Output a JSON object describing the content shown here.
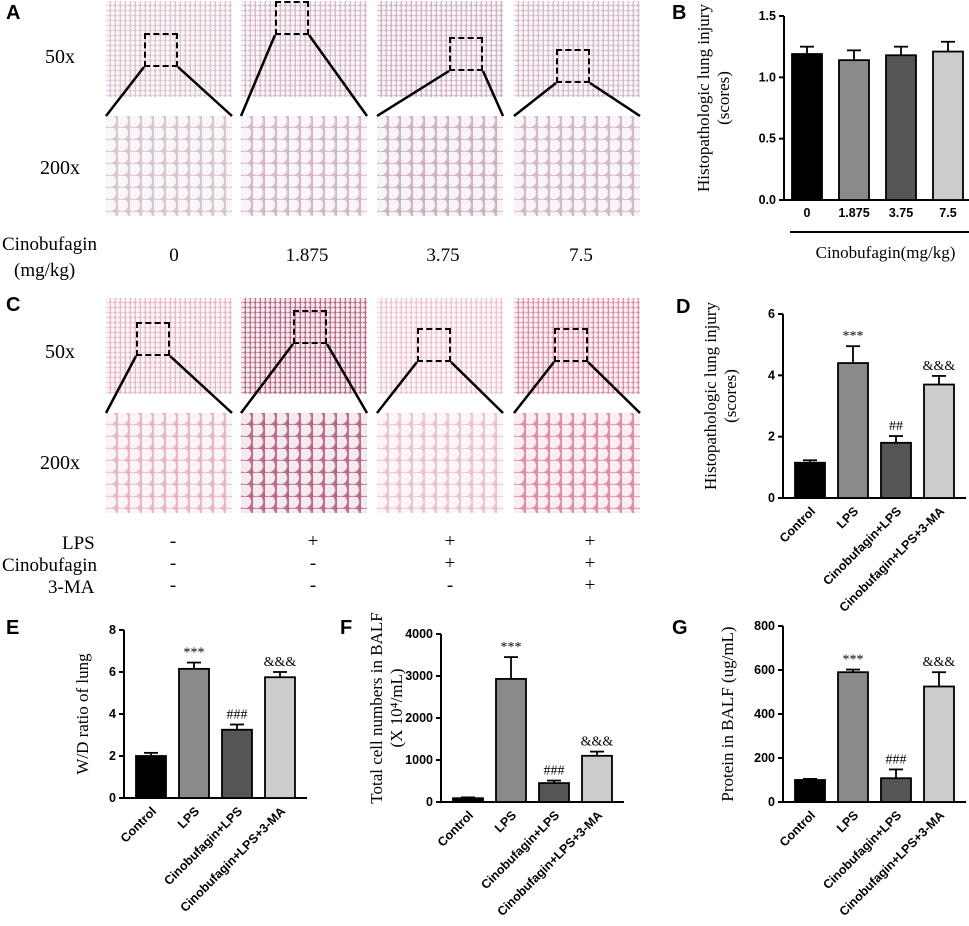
{
  "panels": {
    "a": "A",
    "b": "B",
    "c": "C",
    "d": "D",
    "e": "E",
    "f": "F",
    "g": "G"
  },
  "micro": {
    "mag_low": "50x",
    "mag_high": "200x",
    "cino_label_line1": "Cinobufagin",
    "cino_label_line2": "(mg/kg)",
    "doses": [
      "0",
      "1.875",
      "3.75",
      "7.5"
    ],
    "cond_labels": [
      "LPS",
      "Cinobufagin",
      "3-MA"
    ],
    "cond_rows": [
      [
        "-",
        "+",
        "+",
        "+"
      ],
      [
        "-",
        "-",
        "+",
        "+"
      ],
      [
        "-",
        "-",
        "-",
        "+"
      ]
    ],
    "tile_colors_a": [
      "#d9c2d1",
      "#d4b7c9",
      "#cdb0c3",
      "#d2b8c8"
    ],
    "tile_colors_c": [
      "#e6b7c6",
      "#b86c8b",
      "#ecc2cf",
      "#dd8fa6"
    ]
  },
  "chart_data": [
    {
      "id": "B",
      "type": "bar",
      "ylabel": "Histopathologic lung injury (scores)",
      "xlabel": "Cinobufagin(mg/kg)",
      "categories": [
        "0",
        "1.875",
        "3.75",
        "7.5"
      ],
      "values": [
        1.19,
        1.14,
        1.18,
        1.21
      ],
      "errors": [
        0.06,
        0.08,
        0.07,
        0.08
      ],
      "ylim": [
        0,
        1.5
      ],
      "yticks": [
        "0.0",
        "0.5",
        "1.0",
        "1.5"
      ],
      "colors": [
        "#000000",
        "#8a8a8a",
        "#555555",
        "#cccccc"
      ],
      "annotations": [
        "",
        "",
        "",
        ""
      ]
    },
    {
      "id": "D",
      "type": "bar",
      "ylabel": "Histopathologic lung injury (scores)",
      "categories": [
        "Control",
        "LPS",
        "Cinobufagin+LPS",
        "Cinobufagin+LPS+3-MA"
      ],
      "values": [
        1.15,
        4.4,
        1.8,
        3.7
      ],
      "errors": [
        0.08,
        0.55,
        0.22,
        0.28
      ],
      "ylim": [
        0,
        6
      ],
      "yticks": [
        "0",
        "2",
        "4",
        "6"
      ],
      "colors": [
        "#000000",
        "#8a8a8a",
        "#555555",
        "#cccccc"
      ],
      "annotations": [
        "",
        "***",
        "##",
        "&&&"
      ]
    },
    {
      "id": "E",
      "type": "bar",
      "ylabel": "W/D ratio of lung",
      "categories": [
        "Control",
        "LPS",
        "Cinobufagin+LPS",
        "Cinobufagin+LPS+3-MA"
      ],
      "values": [
        2.0,
        6.15,
        3.25,
        5.75
      ],
      "errors": [
        0.15,
        0.3,
        0.25,
        0.25
      ],
      "ylim": [
        0,
        8
      ],
      "yticks": [
        "0",
        "2",
        "4",
        "6",
        "8"
      ],
      "colors": [
        "#000000",
        "#8a8a8a",
        "#555555",
        "#cccccc"
      ],
      "annotations": [
        "",
        "***",
        "###",
        "&&&"
      ]
    },
    {
      "id": "F",
      "type": "bar",
      "ylabel": "Total cell numbers in BALF",
      "ylabel2": "(X 10⁴/mL)",
      "categories": [
        "Control",
        "LPS",
        "Cinobufagin+LPS",
        "Cinobufagin+LPS+3-MA"
      ],
      "values": [
        90,
        2930,
        450,
        1100
      ],
      "errors": [
        20,
        520,
        60,
        100
      ],
      "ylim": [
        0,
        4000
      ],
      "yticks": [
        "0",
        "1000",
        "2000",
        "3000",
        "4000"
      ],
      "colors": [
        "#000000",
        "#8a8a8a",
        "#555555",
        "#cccccc"
      ],
      "annotations": [
        "",
        "***",
        "###",
        "&&&"
      ]
    },
    {
      "id": "G",
      "type": "bar",
      "ylabel": "Protein in BALF (ug/mL)",
      "categories": [
        "Control",
        "LPS",
        "Cinobufagin+LPS",
        "Cinobufagin+LPS+3-MA"
      ],
      "values": [
        100,
        590,
        108,
        525
      ],
      "errors": [
        5,
        12,
        40,
        65
      ],
      "ylim": [
        0,
        800
      ],
      "yticks": [
        "0",
        "200",
        "400",
        "600",
        "800"
      ],
      "colors": [
        "#000000",
        "#8a8a8a",
        "#555555",
        "#cccccc"
      ],
      "annotations": [
        "",
        "***",
        "###",
        "&&&"
      ]
    }
  ]
}
